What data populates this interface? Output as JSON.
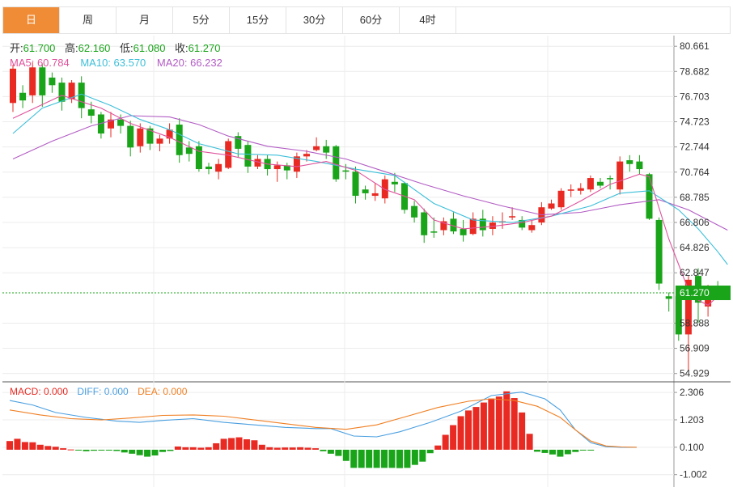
{
  "tabs": [
    {
      "label": "日",
      "active": true
    },
    {
      "label": "周"
    },
    {
      "label": "月"
    },
    {
      "label": "5分"
    },
    {
      "label": "15分"
    },
    {
      "label": "30分"
    },
    {
      "label": "60分"
    },
    {
      "label": "4时"
    }
  ],
  "ohlc_info": {
    "open_label": "开:",
    "open": "61.700",
    "high_label": "高:",
    "high": "62.160",
    "low_label": "低:",
    "low": "61.080",
    "close_label": "收:",
    "close": "61.270"
  },
  "ma_info": {
    "ma5": "MA5: 60.784",
    "ma10": "MA10: 63.570",
    "ma20": "MA20: 66.232"
  },
  "macd_info": {
    "macd": "MACD: 0.000",
    "diff": "DIFF: 0.000",
    "dea": "DEA: 0.000"
  },
  "last_price": "61.270",
  "colors": {
    "up": "#e82a22",
    "down": "#1aa41a",
    "ma5": "#e0529c",
    "ma10": "#3cbfd9",
    "ma20": "#b25cc4",
    "diff": "#4a9fe0",
    "dea": "#f07f22",
    "accent": "#f08c36"
  },
  "chart_data": [
    {
      "type": "candlestick",
      "y_ticks": [
        80.661,
        78.682,
        76.703,
        74.723,
        72.744,
        70.764,
        68.785,
        66.806,
        64.826,
        62.847,
        58.888,
        56.909,
        54.929
      ],
      "ylim": [
        54.4,
        81.5
      ],
      "current_price": 61.27,
      "candles": [
        [
          76.2,
          78.9,
          75.5,
          79.2
        ],
        [
          77.0,
          76.4,
          75.8,
          77.6
        ],
        [
          76.8,
          79.0,
          76.2,
          79.4
        ],
        [
          79.0,
          76.8,
          75.9,
          79.3
        ],
        [
          78.2,
          77.6,
          77.0,
          78.6
        ],
        [
          77.8,
          76.3,
          75.6,
          78.2
        ],
        [
          76.5,
          77.8,
          76.2,
          78.0
        ],
        [
          77.8,
          75.8,
          75.0,
          78.3
        ],
        [
          75.7,
          75.2,
          74.6,
          76.3
        ],
        [
          75.3,
          73.8,
          73.4,
          75.5
        ],
        [
          74.2,
          74.9,
          73.5,
          75.5
        ],
        [
          74.9,
          74.4,
          73.8,
          75.3
        ],
        [
          74.4,
          72.7,
          72.0,
          74.8
        ],
        [
          72.8,
          74.2,
          72.3,
          74.6
        ],
        [
          74.2,
          73.0,
          72.5,
          74.4
        ],
        [
          73.0,
          73.4,
          72.4,
          73.7
        ],
        [
          73.4,
          74.1,
          73.0,
          74.6
        ],
        [
          74.5,
          72.1,
          71.5,
          75.0
        ],
        [
          72.7,
          72.2,
          71.6,
          73.2
        ],
        [
          72.8,
          71.0,
          70.8,
          73.2
        ],
        [
          71.2,
          71.0,
          70.6,
          71.5
        ],
        [
          70.8,
          71.4,
          70.2,
          71.8
        ],
        [
          71.1,
          73.2,
          71.0,
          73.4
        ],
        [
          73.6,
          72.6,
          71.9,
          73.9
        ],
        [
          72.9,
          71.2,
          70.7,
          73.2
        ],
        [
          71.2,
          71.8,
          71.0,
          72.1
        ],
        [
          71.8,
          71.0,
          70.5,
          72.1
        ],
        [
          71.0,
          71.3,
          70.0,
          71.6
        ],
        [
          71.3,
          70.9,
          70.2,
          71.5
        ],
        [
          70.8,
          72.0,
          70.3,
          72.3
        ],
        [
          72.0,
          72.2,
          71.6,
          72.5
        ],
        [
          72.5,
          72.8,
          72.4,
          73.5
        ],
        [
          72.8,
          72.3,
          71.8,
          73.3
        ],
        [
          72.8,
          70.2,
          70.0,
          72.9
        ],
        [
          70.9,
          70.8,
          70.2,
          71.4
        ],
        [
          70.8,
          68.9,
          68.3,
          71.2
        ],
        [
          69.4,
          69.1,
          68.6,
          69.7
        ],
        [
          68.9,
          69.1,
          68.5,
          69.9
        ],
        [
          68.7,
          70.2,
          68.3,
          70.5
        ],
        [
          70.0,
          69.8,
          69.2,
          70.7
        ],
        [
          69.9,
          67.8,
          67.5,
          70.0
        ],
        [
          68.1,
          67.2,
          66.8,
          68.5
        ],
        [
          67.6,
          65.8,
          65.2,
          67.9
        ],
        [
          66.1,
          66.0,
          65.6,
          67.2
        ],
        [
          66.2,
          66.9,
          65.8,
          67.2
        ],
        [
          67.1,
          66.1,
          65.9,
          67.6
        ],
        [
          66.3,
          65.8,
          65.3,
          67.0
        ],
        [
          65.9,
          67.1,
          65.8,
          67.6
        ],
        [
          67.1,
          66.2,
          65.7,
          67.8
        ],
        [
          66.3,
          66.8,
          65.8,
          67.3
        ],
        [
          66.8,
          66.9,
          66.3,
          67.6
        ],
        [
          67.2,
          67.3,
          67.0,
          68.0
        ],
        [
          67.0,
          66.4,
          66.2,
          67.3
        ],
        [
          66.2,
          66.6,
          66.0,
          67.0
        ],
        [
          66.8,
          68.0,
          66.6,
          68.4
        ],
        [
          67.9,
          68.3,
          67.8,
          68.6
        ],
        [
          68.0,
          69.3,
          67.8,
          69.5
        ],
        [
          69.3,
          69.4,
          68.8,
          69.8
        ],
        [
          69.3,
          69.5,
          69.0,
          69.9
        ],
        [
          69.4,
          70.3,
          69.2,
          70.5
        ],
        [
          70.0,
          69.7,
          69.5,
          70.3
        ],
        [
          70.3,
          70.2,
          69.4,
          70.5
        ],
        [
          69.4,
          71.6,
          69.0,
          72.0
        ],
        [
          71.7,
          71.4,
          70.8,
          72.1
        ],
        [
          71.6,
          71.0,
          70.6,
          72.1
        ],
        [
          70.6,
          67.1,
          67.0,
          70.7
        ],
        [
          67.0,
          62.0,
          61.5,
          67.2
        ],
        [
          61.0,
          60.8,
          59.8,
          61.3
        ],
        [
          61.0,
          58.0,
          57.5,
          61.3
        ],
        [
          58.0,
          62.3,
          55.2,
          62.6
        ],
        [
          62.6,
          60.5,
          58.9,
          63.2
        ],
        [
          60.2,
          61.7,
          59.4,
          61.9
        ],
        [
          61.6,
          61.0,
          61.0,
          62.2
        ]
      ],
      "ma5": [
        [
          0,
          75.0
        ],
        [
          5,
          76.8
        ],
        [
          9,
          75.8
        ],
        [
          12,
          74.6
        ],
        [
          16,
          73.5
        ],
        [
          19,
          72.4
        ],
        [
          22,
          72.1
        ],
        [
          26,
          71.4
        ],
        [
          29,
          71.2
        ],
        [
          32,
          71.6
        ],
        [
          35,
          70.9
        ],
        [
          38,
          69.4
        ],
        [
          41,
          68.6
        ],
        [
          43,
          67.0
        ],
        [
          46,
          66.3
        ],
        [
          49,
          66.5
        ],
        [
          52,
          66.8
        ],
        [
          55,
          67.3
        ],
        [
          58,
          68.5
        ],
        [
          61,
          69.8
        ],
        [
          64,
          70.6
        ],
        [
          65,
          70.4
        ],
        [
          67,
          65.5
        ],
        [
          68,
          63.5
        ],
        [
          69,
          61.5
        ],
        [
          70,
          60.7
        ],
        [
          71,
          60.3
        ],
        [
          72,
          61.0
        ]
      ],
      "ma10": [
        [
          0,
          73.8
        ],
        [
          3,
          75.8
        ],
        [
          7,
          76.9
        ],
        [
          10,
          76.0
        ],
        [
          13,
          74.9
        ],
        [
          16,
          74.1
        ],
        [
          19,
          73.0
        ],
        [
          23,
          72.2
        ],
        [
          27,
          72.1
        ],
        [
          31,
          71.6
        ],
        [
          35,
          71.0
        ],
        [
          39,
          70.5
        ],
        [
          43,
          68.3
        ],
        [
          47,
          67.0
        ],
        [
          51,
          66.8
        ],
        [
          55,
          67.3
        ],
        [
          59,
          68.1
        ],
        [
          62,
          69.1
        ],
        [
          65,
          69.3
        ],
        [
          68,
          67.8
        ],
        [
          70,
          66.3
        ],
        [
          72,
          64.5
        ],
        [
          73,
          63.5
        ]
      ],
      "ma20": [
        [
          0,
          71.8
        ],
        [
          4,
          73.2
        ],
        [
          8,
          74.4
        ],
        [
          12,
          75.2
        ],
        [
          16,
          75.1
        ],
        [
          19,
          74.5
        ],
        [
          22,
          73.6
        ],
        [
          26,
          72.8
        ],
        [
          30,
          72.4
        ],
        [
          34,
          71.8
        ],
        [
          38,
          70.8
        ],
        [
          42,
          69.8
        ],
        [
          46,
          68.9
        ],
        [
          50,
          68.1
        ],
        [
          54,
          67.4
        ],
        [
          58,
          67.6
        ],
        [
          62,
          68.2
        ],
        [
          66,
          68.6
        ],
        [
          69,
          67.8
        ],
        [
          72,
          66.6
        ],
        [
          73,
          66.2
        ]
      ]
    },
    {
      "type": "macd",
      "y_ticks": [
        2.306,
        1.203,
        0.1,
        -1.002
      ],
      "ylim": [
        -1.5,
        2.7
      ],
      "hist": [
        0.35,
        0.44,
        0.31,
        0.3,
        0.2,
        0.15,
        0.12,
        0.06,
        0.01,
        -0.02,
        -0.06,
        -0.04,
        -0.02,
        -0.03,
        -0.05,
        -0.11,
        -0.16,
        -0.22,
        -0.28,
        -0.23,
        -0.09,
        -0.05,
        0.13,
        0.1,
        0.1,
        0.08,
        0.1,
        0.26,
        0.44,
        0.47,
        0.5,
        0.42,
        0.38,
        0.2,
        0.1,
        0.08,
        0.09,
        0.09,
        0.1,
        0.08,
        0.06,
        -0.06,
        -0.16,
        -0.25,
        -0.45,
        -0.73,
        -0.73,
        -0.73,
        -0.73,
        -0.73,
        -0.73,
        -0.74,
        -0.73,
        -0.61,
        -0.48,
        -0.14,
        0.17,
        0.6,
        0.99,
        1.35,
        1.58,
        1.72,
        1.9,
        2.06,
        2.14,
        2.35,
        2.08,
        1.5,
        0.64,
        -0.08,
        -0.13,
        -0.19,
        -0.28,
        -0.18,
        -0.09,
        -0.03,
        -0.01
      ],
      "diff": [
        [
          0,
          1.98
        ],
        [
          3,
          1.8
        ],
        [
          6,
          1.5
        ],
        [
          10,
          1.3
        ],
        [
          14,
          1.15
        ],
        [
          17,
          1.1
        ],
        [
          20,
          1.18
        ],
        [
          24,
          1.25
        ],
        [
          28,
          1.1
        ],
        [
          32,
          1.0
        ],
        [
          36,
          0.9
        ],
        [
          40,
          0.85
        ],
        [
          42,
          0.85
        ],
        [
          45,
          0.55
        ],
        [
          48,
          0.52
        ],
        [
          51,
          0.72
        ],
        [
          55,
          1.1
        ],
        [
          59,
          1.55
        ],
        [
          63,
          2.18
        ],
        [
          67,
          2.32
        ],
        [
          70,
          2.05
        ],
        [
          72,
          1.6
        ],
        [
          74,
          0.8
        ],
        [
          76,
          0.28
        ],
        [
          78,
          0.12
        ],
        [
          80,
          0.1
        ],
        [
          82,
          0.1
        ]
      ],
      "dea": [
        [
          0,
          1.6
        ],
        [
          4,
          1.4
        ],
        [
          8,
          1.25
        ],
        [
          12,
          1.2
        ],
        [
          16,
          1.28
        ],
        [
          20,
          1.38
        ],
        [
          24,
          1.4
        ],
        [
          28,
          1.35
        ],
        [
          32,
          1.2
        ],
        [
          36,
          1.05
        ],
        [
          40,
          0.9
        ],
        [
          44,
          0.82
        ],
        [
          48,
          1.0
        ],
        [
          52,
          1.35
        ],
        [
          56,
          1.7
        ],
        [
          60,
          1.95
        ],
        [
          63,
          2.05
        ],
        [
          66,
          1.98
        ],
        [
          69,
          1.75
        ],
        [
          72,
          1.3
        ],
        [
          74,
          0.8
        ],
        [
          76,
          0.35
        ],
        [
          78,
          0.15
        ],
        [
          80,
          0.11
        ],
        [
          82,
          0.1
        ]
      ]
    }
  ]
}
